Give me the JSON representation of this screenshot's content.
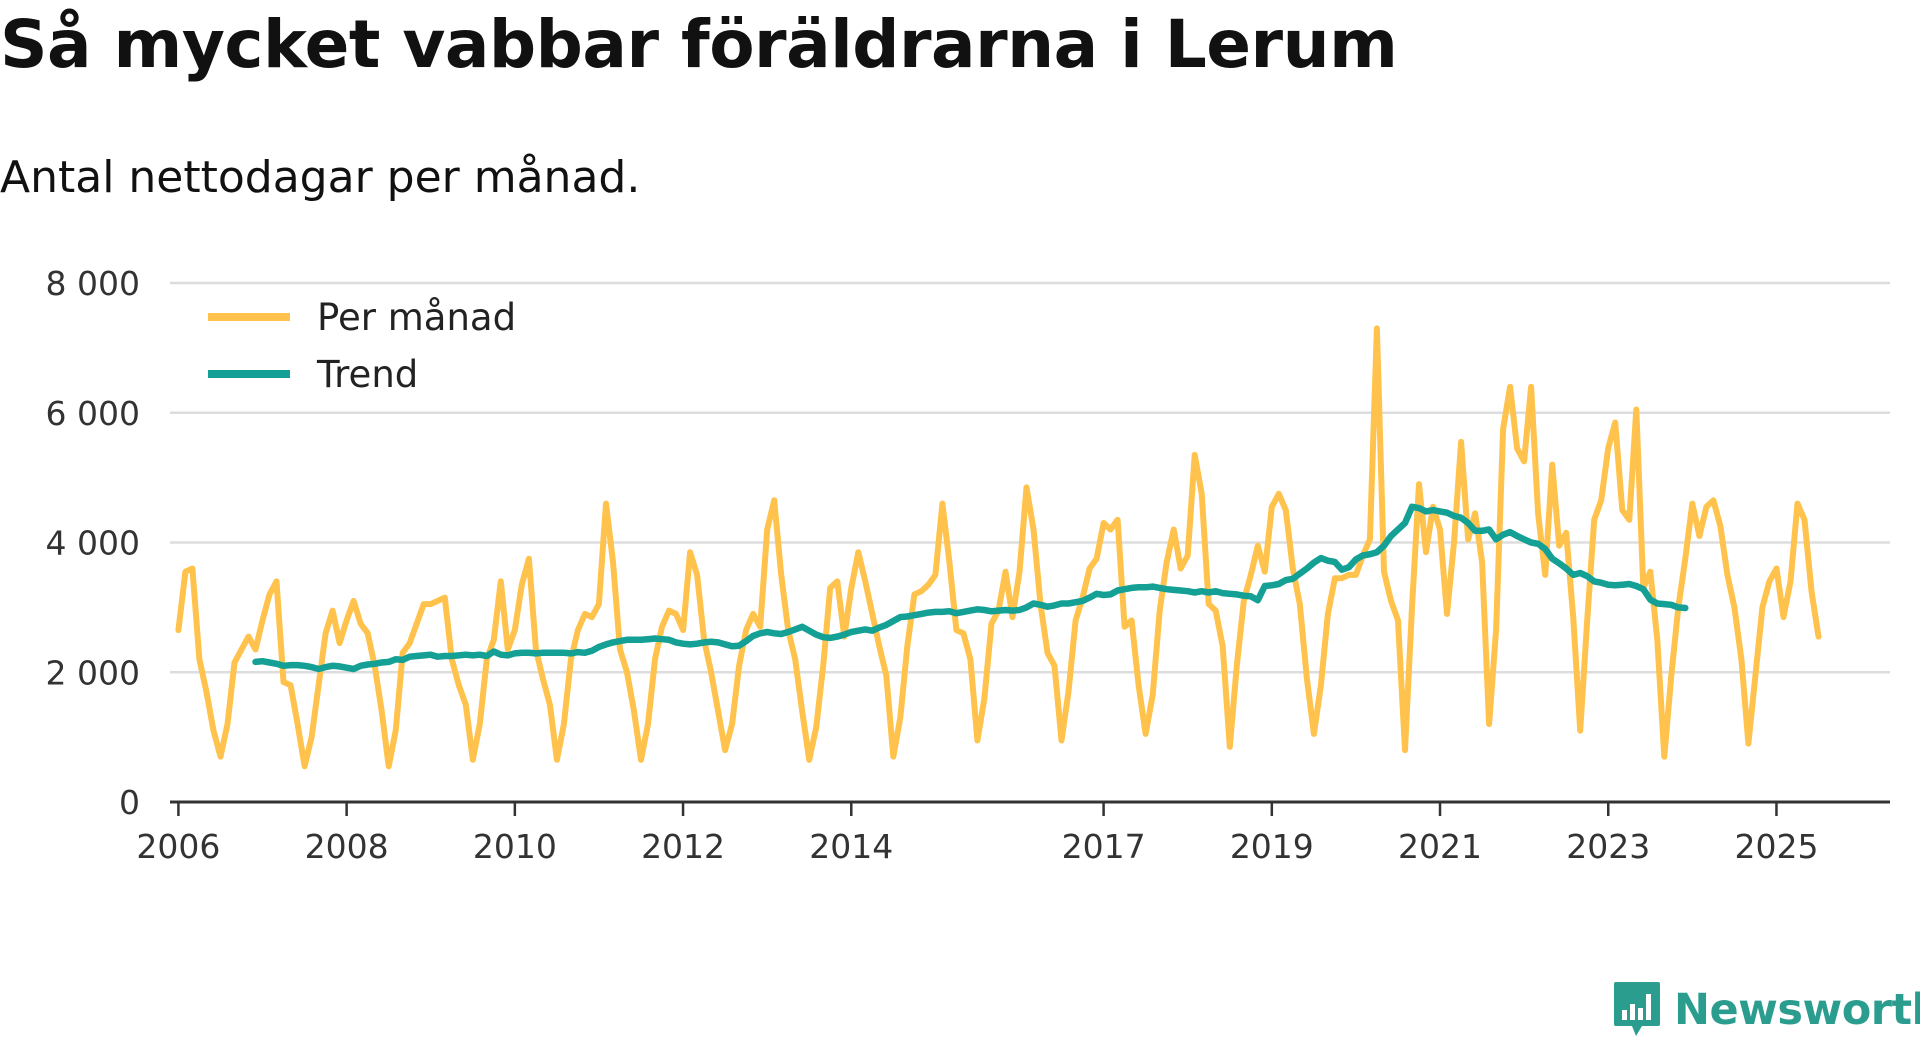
{
  "title": "Så mycket vabbar föräldrarna i Lerum",
  "subtitle": "Antal nettodagar per månad.",
  "brand": "Newsworthy",
  "colors": {
    "per_month": "#ffc34d",
    "trend": "#14a094",
    "grid": "#dddddd",
    "axis": "#333333",
    "brand": "#2a9d8f"
  },
  "chart_data": {
    "type": "line",
    "title": "Så mycket vabbar föräldrarna i Lerum",
    "subtitle": "Antal nettodagar per månad.",
    "xlabel": "",
    "ylabel": "",
    "ylim": [
      0,
      8000
    ],
    "xlim": [
      2005.9,
      2026.35
    ],
    "yticks": [
      0,
      2000,
      4000,
      6000,
      8000
    ],
    "ytick_labels": [
      "0",
      "2 000",
      "4 000",
      "6 000",
      "8 000"
    ],
    "xticks": [
      2006,
      2008,
      2010,
      2012,
      2014,
      2017,
      2019,
      2021,
      2023,
      2025
    ],
    "xtick_labels": [
      "2006",
      "2008",
      "2010",
      "2012",
      "2014",
      "2017",
      "2019",
      "2021",
      "2023",
      "2025"
    ],
    "grid": true,
    "legend_position": "top-left",
    "series": [
      {
        "name": "Per månad",
        "start": 2006.0,
        "step": 0.0833333,
        "values": [
          2650,
          3550,
          3600,
          2200,
          1700,
          1100,
          700,
          1200,
          2150,
          2350,
          2550,
          2350,
          2800,
          3200,
          3400,
          1850,
          1800,
          1200,
          550,
          1000,
          1800,
          2600,
          2950,
          2450,
          2800,
          3100,
          2750,
          2600,
          2100,
          1400,
          550,
          1100,
          2300,
          2450,
          2750,
          3050,
          3050,
          3100,
          3150,
          2200,
          1800,
          1500,
          650,
          1200,
          2200,
          2500,
          3400,
          2350,
          2650,
          3350,
          3750,
          2350,
          1900,
          1500,
          650,
          1200,
          2200,
          2650,
          2900,
          2850,
          3050,
          4600,
          3700,
          2350,
          2000,
          1400,
          650,
          1200,
          2200,
          2700,
          2950,
          2900,
          2650,
          3850,
          3500,
          2500,
          2000,
          1400,
          800,
          1200,
          2100,
          2650,
          2900,
          2700,
          4200,
          4650,
          3500,
          2650,
          2200,
          1400,
          650,
          1150,
          2100,
          3300,
          3400,
          2550,
          3300,
          3850,
          3400,
          2900,
          2400,
          1950,
          700,
          1300,
          2400,
          3200,
          3250,
          3350,
          3500,
          4600,
          3700,
          2650,
          2600,
          2200,
          950,
          1600,
          2750,
          2950,
          3550,
          2850,
          3550,
          4850,
          4200,
          3050,
          2300,
          2100,
          950,
          1700,
          2800,
          3150,
          3600,
          3750,
          4300,
          4200,
          4350,
          2700,
          2800,
          1800,
          1050,
          1650,
          2950,
          3700,
          4200,
          3600,
          3800,
          5350,
          4750,
          3050,
          2950,
          2400,
          850,
          2100,
          3100,
          3500,
          3950,
          3550,
          4550,
          4750,
          4500,
          3600,
          3050,
          1900,
          1050,
          1800,
          2900,
          3450,
          3450,
          3500,
          3500,
          3800,
          4050,
          7300,
          3550,
          3100,
          2800,
          800,
          3000,
          4900,
          3850,
          4550,
          4200,
          2900,
          4000,
          5550,
          4050,
          4450,
          3700,
          1200,
          2650,
          5750,
          6400,
          5450,
          5250,
          6400,
          4450,
          3500,
          5200,
          3950,
          4150,
          2850,
          1100,
          2800,
          4350,
          4650,
          5450,
          5850,
          4500,
          4350,
          6050,
          3300,
          3550,
          2500,
          700,
          1950,
          3000,
          3750,
          4600,
          4100,
          4550,
          4650,
          4250,
          3500,
          3000,
          2200,
          900,
          1950,
          3000,
          3400,
          3600,
          2850,
          3400,
          4600,
          4350,
          3250,
          2550
        ]
      },
      {
        "name": "Trend",
        "start": 2006.9167,
        "step": 0.0833333,
        "values": [
          2160,
          2170,
          2150,
          2130,
          2100,
          2110,
          2110,
          2100,
          2080,
          2050,
          2080,
          2100,
          2090,
          2070,
          2050,
          2100,
          2120,
          2130,
          2150,
          2160,
          2200,
          2190,
          2240,
          2250,
          2260,
          2270,
          2240,
          2250,
          2250,
          2260,
          2270,
          2260,
          2270,
          2250,
          2320,
          2270,
          2260,
          2290,
          2300,
          2300,
          2290,
          2300,
          2300,
          2300,
          2300,
          2290,
          2310,
          2300,
          2330,
          2390,
          2430,
          2460,
          2480,
          2500,
          2500,
          2500,
          2510,
          2520,
          2510,
          2500,
          2460,
          2440,
          2430,
          2440,
          2460,
          2470,
          2460,
          2430,
          2400,
          2410,
          2480,
          2560,
          2600,
          2620,
          2600,
          2590,
          2620,
          2660,
          2700,
          2640,
          2580,
          2540,
          2530,
          2550,
          2580,
          2620,
          2640,
          2660,
          2640,
          2690,
          2730,
          2790,
          2850,
          2860,
          2880,
          2900,
          2920,
          2930,
          2930,
          2940,
          2910,
          2930,
          2950,
          2970,
          2960,
          2940,
          2950,
          2960,
          2950,
          2960,
          3000,
          3060,
          3040,
          3010,
          3030,
          3060,
          3060,
          3080,
          3100,
          3150,
          3210,
          3190,
          3200,
          3260,
          3280,
          3300,
          3310,
          3310,
          3320,
          3300,
          3280,
          3270,
          3260,
          3250,
          3230,
          3250,
          3230,
          3250,
          3220,
          3210,
          3200,
          3180,
          3170,
          3110,
          3330,
          3340,
          3360,
          3420,
          3440,
          3520,
          3600,
          3690,
          3760,
          3720,
          3700,
          3580,
          3620,
          3740,
          3800,
          3820,
          3850,
          3950,
          4100,
          4200,
          4300,
          4550,
          4530,
          4480,
          4500,
          4480,
          4460,
          4410,
          4380,
          4300,
          4180,
          4180,
          4200,
          4050,
          4120,
          4160,
          4100,
          4050,
          4000,
          3980,
          3900,
          3750,
          3680,
          3600,
          3500,
          3530,
          3480,
          3400,
          3380,
          3350,
          3340,
          3350,
          3360,
          3330,
          3280,
          3120,
          3060,
          3050,
          3040,
          3000,
          2990
        ]
      }
    ]
  }
}
